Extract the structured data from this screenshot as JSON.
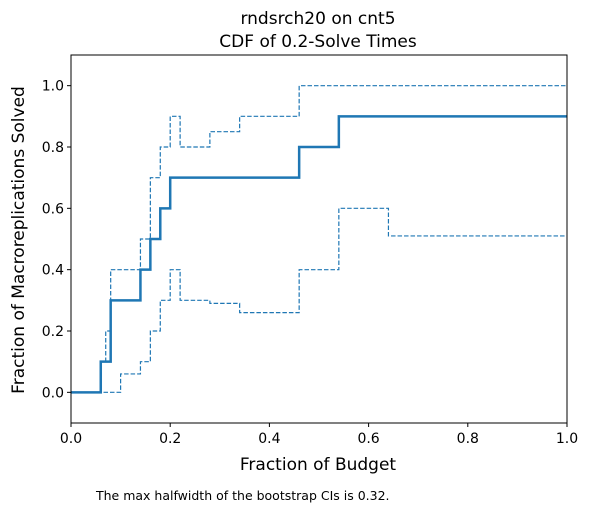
{
  "chart_data": {
    "type": "line",
    "title_line1": "rndsrch20 on cnt5",
    "title_line2": "CDF of 0.2-Solve Times",
    "xlabel": "Fraction of Budget",
    "ylabel": "Fraction of Macroreplications Solved",
    "xlim": [
      0,
      1
    ],
    "ylim": [
      -0.1,
      1.1
    ],
    "xticks": [
      0,
      0.2,
      0.4,
      0.6,
      0.8,
      1.0
    ],
    "xtick_labels": [
      "0.0",
      "0.2",
      "0.4",
      "0.6",
      "0.8",
      "1.0"
    ],
    "yticks": [
      0,
      0.2,
      0.4,
      0.6,
      0.8,
      1.0
    ],
    "ytick_labels": [
      "0.0",
      "0.2",
      "0.4",
      "0.6",
      "0.8",
      "1.0"
    ],
    "grid": false,
    "legend": "none",
    "color": "#1f77b4",
    "series": [
      {
        "style": "solid",
        "x": [
          0,
          0.06,
          0.06,
          0.08,
          0.08,
          0.14,
          0.14,
          0.16,
          0.16,
          0.18,
          0.18,
          0.2,
          0.2,
          0.46,
          0.46,
          0.54,
          0.54,
          1.0
        ],
        "y": [
          0,
          0,
          0.1,
          0.1,
          0.3,
          0.3,
          0.4,
          0.4,
          0.5,
          0.5,
          0.6,
          0.6,
          0.7,
          0.7,
          0.8,
          0.8,
          0.9,
          0.9
        ]
      },
      {
        "style": "dashed",
        "x": [
          0,
          0.06,
          0.06,
          0.07,
          0.07,
          0.08,
          0.08,
          0.14,
          0.14,
          0.16,
          0.16,
          0.18,
          0.18,
          0.2,
          0.2,
          0.22,
          0.22,
          0.28,
          0.28,
          0.34,
          0.34,
          0.46,
          0.46,
          1.0
        ],
        "y": [
          0,
          0,
          0.1,
          0.1,
          0.2,
          0.2,
          0.4,
          0.4,
          0.5,
          0.5,
          0.7,
          0.7,
          0.8,
          0.8,
          0.9,
          0.9,
          0.8,
          0.8,
          0.85,
          0.85,
          0.9,
          0.9,
          1.0,
          1.0
        ]
      },
      {
        "style": "dashed",
        "x": [
          0,
          0.1,
          0.1,
          0.14,
          0.14,
          0.16,
          0.16,
          0.18,
          0.18,
          0.2,
          0.2,
          0.22,
          0.22,
          0.28,
          0.28,
          0.34,
          0.34,
          0.46,
          0.46,
          0.54,
          0.54,
          0.64,
          0.64,
          1.0
        ],
        "y": [
          0,
          0,
          0.06,
          0.06,
          0.1,
          0.1,
          0.2,
          0.2,
          0.3,
          0.3,
          0.4,
          0.4,
          0.3,
          0.3,
          0.29,
          0.29,
          0.26,
          0.26,
          0.4,
          0.4,
          0.6,
          0.6,
          0.51,
          0.51
        ]
      }
    ]
  },
  "footnote": "The max halfwidth of the bootstrap CIs is 0.32."
}
